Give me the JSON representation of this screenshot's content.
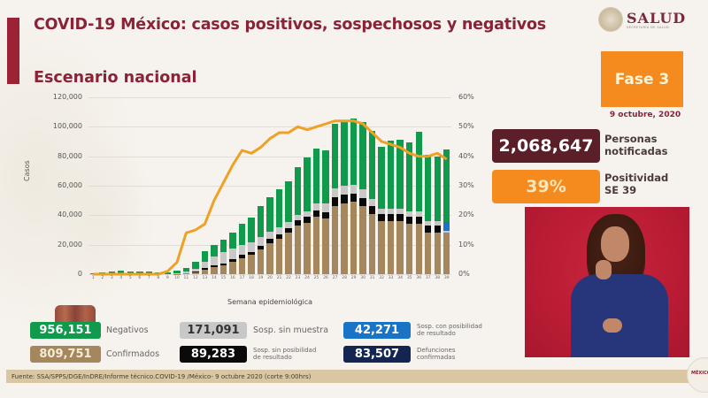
{
  "header": {
    "title": "COVID-19 México: casos positivos, sospechosos y negativos",
    "subtitle": "Escenario nacional",
    "logo_text": "SALUD",
    "logo_subtext": "SECRETARÍA DE SALUD"
  },
  "sidebar": {
    "fase_label": "Fase 3",
    "date": "9 octubre, 2020",
    "notificadas_value": "2,068,647",
    "notificadas_label_1": "Personas",
    "notificadas_label_2": "notificadas",
    "positividad_value": "39%",
    "positividad_label_1": "Positividad",
    "positividad_label_2": "SE 39"
  },
  "legend": {
    "negativos": {
      "value": "956,151",
      "label": "Negativos",
      "color": "#0f9a4c"
    },
    "confirmados": {
      "value": "809,751",
      "label": "Confirmados",
      "color": "#a4875c"
    },
    "sin_muestra": {
      "value": "171,091",
      "label": "Sosp. sin muestra",
      "color": "#c8c8c8"
    },
    "sin_posibilidad": {
      "value": "89,283",
      "label_1": "Sosp. sin posibilidad",
      "label_2": "de resultado",
      "color": "#0a0a0a"
    },
    "con_posibilidad": {
      "value": "42,271",
      "label_1": "Sosp. con posibilidad",
      "label_2": "de resultado",
      "color": "#1a73c4"
    },
    "defunciones": {
      "value": "83,507",
      "label_1": "Defunciones",
      "label_2": "confirmadas",
      "color": "#142552"
    }
  },
  "footer": {
    "source": "Fuente: SSA/SPPS/DGE/InDRE/Informe técnico.COVID-19 /México- 9 octubre 2020 (corte 9:00hrs)"
  },
  "corner_seal": "MÉXICO",
  "chart_data": {
    "type": "bar",
    "title": "Escenario nacional",
    "xlabel": "Semana epidemiológica",
    "ylabel": "Casos",
    "ylim": [
      0,
      120000
    ],
    "y2lim": [
      0,
      0.6
    ],
    "yticks": [
      "0",
      "20,000",
      "40,000",
      "60,000",
      "80,000",
      "100,000",
      "120,000"
    ],
    "y2ticks": [
      "0%",
      "10%",
      "20%",
      "30%",
      "40%",
      "50%",
      "60%"
    ],
    "grid": true,
    "stacked": true,
    "categories": [
      "1",
      "2",
      "3",
      "4",
      "5",
      "6",
      "7",
      "8",
      "9",
      "10",
      "11",
      "12",
      "13",
      "14",
      "15",
      "16",
      "17",
      "18",
      "19",
      "20",
      "21",
      "22",
      "23",
      "24",
      "25",
      "26",
      "27",
      "28",
      "29",
      "30",
      "31",
      "32",
      "33",
      "34",
      "35",
      "36",
      "37",
      "38",
      "39"
    ],
    "series": [
      {
        "name": "Confirmados",
        "color": "#a4875c",
        "values": [
          0,
          0,
          0,
          0,
          0,
          0,
          0,
          0,
          0,
          200,
          600,
          1500,
          3000,
          4500,
          6000,
          8500,
          11000,
          13000,
          17000,
          21000,
          24000,
          28000,
          33000,
          35000,
          39000,
          38000,
          46000,
          48000,
          49000,
          46000,
          41000,
          36000,
          36000,
          36000,
          34000,
          34000,
          28000,
          28000,
          28000
        ]
      },
      {
        "name": "Sosp. sin posibilidad de resultado",
        "color": "#0a0a0a",
        "values": [
          0,
          0,
          0,
          0,
          0,
          0,
          0,
          0,
          0,
          100,
          200,
          400,
          900,
          1200,
          1300,
          1500,
          2000,
          2200,
          2500,
          2800,
          3000,
          3200,
          3600,
          3800,
          4000,
          4200,
          6000,
          6000,
          5800,
          5400,
          5000,
          4800,
          5000,
          5000,
          5000,
          5000,
          4800,
          5000,
          0
        ]
      },
      {
        "name": "Sosp. sin muestra",
        "color": "#c8c8c8",
        "values": [
          0,
          0,
          0,
          0,
          0,
          0,
          0,
          0,
          0,
          300,
          800,
          1500,
          4500,
          6500,
          8000,
          7500,
          7000,
          6500,
          5500,
          5000,
          4500,
          4000,
          3800,
          3600,
          5000,
          6000,
          6000,
          6000,
          6000,
          6000,
          5000,
          3500,
          3500,
          3500,
          3500,
          3500,
          3000,
          3000,
          1500
        ]
      },
      {
        "name": "Sosp. con posibilidad de resultado",
        "color": "#1a73c4",
        "values": [
          0,
          0,
          0,
          0,
          0,
          0,
          0,
          0,
          0,
          0,
          0,
          0,
          0,
          0,
          0,
          0,
          0,
          0,
          0,
          0,
          0,
          0,
          0,
          0,
          0,
          0,
          0,
          0,
          0,
          0,
          0,
          0,
          0,
          0,
          0,
          0,
          0,
          0,
          6000
        ]
      },
      {
        "name": "Negativos",
        "color": "#0f9a4c",
        "values": [
          800,
          1500,
          1800,
          2200,
          2000,
          1800,
          1800,
          1500,
          1500,
          1600,
          2600,
          5000,
          7000,
          7800,
          8000,
          11000,
          14000,
          17000,
          21000,
          23500,
          26000,
          28000,
          32000,
          37000,
          37000,
          36000,
          44000,
          43000,
          45000,
          46000,
          46000,
          42000,
          46000,
          47000,
          47000,
          54000,
          45000,
          44000,
          49000
        ]
      }
    ],
    "line_series": {
      "name": "Positividad",
      "color": "#f0a024",
      "axis": "y2",
      "values": [
        0,
        0,
        0,
        0,
        0,
        0,
        0,
        0,
        0.01,
        0.04,
        0.14,
        0.15,
        0.17,
        0.25,
        0.31,
        0.37,
        0.42,
        0.41,
        0.43,
        0.46,
        0.48,
        0.48,
        0.5,
        0.49,
        0.5,
        0.51,
        0.52,
        0.52,
        0.52,
        0.51,
        0.48,
        0.45,
        0.44,
        0.43,
        0.41,
        0.4,
        0.4,
        0.41,
        0.39
      ]
    }
  }
}
